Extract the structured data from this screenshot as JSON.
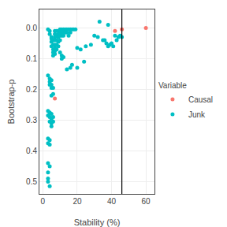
{
  "chart_data": {
    "type": "scatter",
    "xlabel": "Stability (%)",
    "ylabel": "Bootstrap-p",
    "legend_title": "Variable",
    "xlim": [
      -2,
      65
    ],
    "ylim": [
      0.54,
      -0.06
    ],
    "xticks": [
      0,
      20,
      40,
      60
    ],
    "yticks": [
      {
        "value": 0.0,
        "label": "0.0"
      },
      0.1,
      0.2,
      0.3,
      0.4,
      0.5
    ],
    "grid": true,
    "legend": "right",
    "vlines": [
      46
    ],
    "series": [
      {
        "name": "Causal",
        "color": "#F8766D",
        "marker": "circle",
        "x": [
          46,
          60,
          42,
          7
        ],
        "values": [
          0.005,
          0.0,
          0.01,
          0.23
        ]
      },
      {
        "name": "Junk",
        "color": "#00BFC4",
        "marker": "circle",
        "x": [
          3,
          4,
          4,
          5,
          5,
          5,
          5,
          6,
          6,
          6,
          6,
          6,
          7,
          7,
          7,
          7,
          7,
          7,
          7,
          7,
          8,
          8,
          8,
          8,
          8,
          9,
          9,
          9,
          9,
          9,
          10,
          10,
          10,
          10,
          10,
          11,
          11,
          11,
          11,
          11,
          12,
          12,
          12,
          12,
          13,
          13,
          14,
          14,
          15,
          15,
          16,
          16,
          17,
          18,
          19,
          3,
          4,
          4,
          4,
          5,
          5,
          5,
          5,
          6,
          6,
          3,
          3,
          4,
          4,
          4,
          5,
          5,
          5,
          5,
          6,
          6,
          3,
          3,
          4,
          4,
          3,
          4,
          3,
          3,
          3,
          4,
          30,
          32,
          35,
          36,
          37,
          38,
          39,
          40,
          41,
          42,
          43,
          44,
          45,
          46,
          20,
          22,
          25,
          28,
          14,
          16,
          17,
          20,
          24,
          33,
          38
        ],
        "values": [
          0.005,
          0.01,
          0.02,
          0.03,
          0.035,
          0.045,
          0.06,
          0.04,
          0.055,
          0.07,
          0.08,
          0.09,
          0.01,
          0.02,
          0.03,
          0.04,
          0.055,
          0.065,
          0.075,
          0.085,
          0.01,
          0.025,
          0.04,
          0.055,
          0.07,
          0.01,
          0.02,
          0.03,
          0.045,
          0.06,
          0.005,
          0.015,
          0.025,
          0.04,
          0.08,
          0.005,
          0.015,
          0.025,
          0.09,
          0.1,
          0.005,
          0.015,
          0.025,
          0.095,
          0.005,
          0.015,
          0.005,
          0.015,
          0.005,
          0.025,
          0.005,
          0.015,
          0.005,
          0.005,
          0.005,
          0.155,
          0.165,
          0.175,
          0.185,
          0.17,
          0.185,
          0.195,
          0.22,
          0.195,
          0.215,
          0.27,
          0.285,
          0.275,
          0.29,
          0.305,
          0.28,
          0.295,
          0.31,
          0.32,
          0.29,
          0.305,
          0.36,
          0.375,
          0.365,
          0.38,
          0.44,
          0.45,
          0.47,
          0.49,
          0.5,
          0.515,
          0.025,
          0.03,
          0.04,
          0.04,
          0.05,
          0.06,
          0.055,
          0.05,
          0.06,
          0.025,
          0.04,
          0.03,
          0.025,
          0.03,
          0.065,
          0.07,
          0.06,
          0.055,
          0.135,
          0.13,
          0.12,
          0.13,
          0.11,
          -0.02,
          -0.01
        ]
      }
    ]
  }
}
